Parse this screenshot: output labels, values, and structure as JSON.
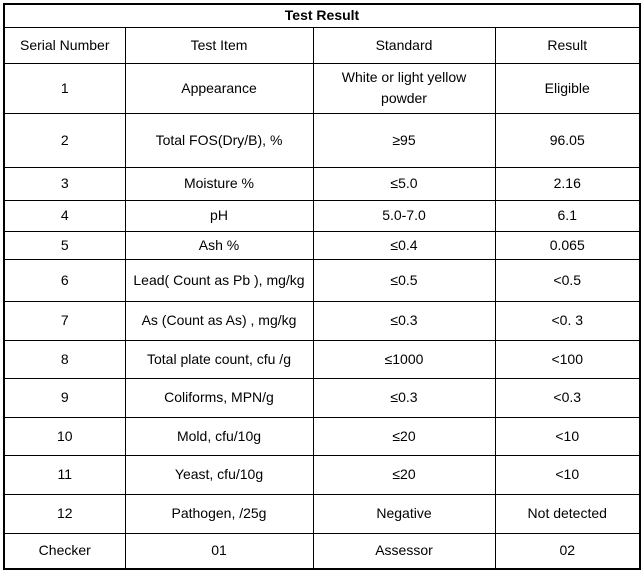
{
  "title": "Test Result",
  "columns": [
    "Serial Number",
    "Test Item",
    "Standard",
    "Result"
  ],
  "rows": [
    [
      "1",
      "Appearance",
      "White or light yellow powder",
      "Eligible"
    ],
    [
      "2",
      "Total FOS(Dry/B), %",
      "≥95",
      "96.05"
    ],
    [
      "3",
      "Moisture %",
      "≤5.0",
      "2.16"
    ],
    [
      "4",
      "pH",
      "5.0-7.0",
      "6.1"
    ],
    [
      "5",
      "Ash %",
      "≤0.4",
      "0.065"
    ],
    [
      "6",
      "Lead( Count as Pb ), mg/kg",
      "≤0.5",
      "<0.5"
    ],
    [
      "7",
      "As (Count as As) , mg/kg",
      "≤0.3",
      "<0. 3"
    ],
    [
      "8",
      "Total plate count, cfu /g",
      "≤1000",
      "<100"
    ],
    [
      "9",
      "Coliforms, MPN/g",
      "≤0.3",
      "<0.3"
    ],
    [
      "10",
      "Mold, cfu/10g",
      "≤20",
      "<10"
    ],
    [
      "11",
      "Yeast, cfu/10g",
      "≤20",
      "<10"
    ],
    [
      "12",
      "Pathogen, /25g",
      "Negative",
      "Not detected"
    ],
    [
      "Checker",
      "01",
      "Assessor",
      "02"
    ]
  ],
  "colors": {
    "border": "#000000",
    "text": "#000000",
    "background": "#ffffff"
  }
}
